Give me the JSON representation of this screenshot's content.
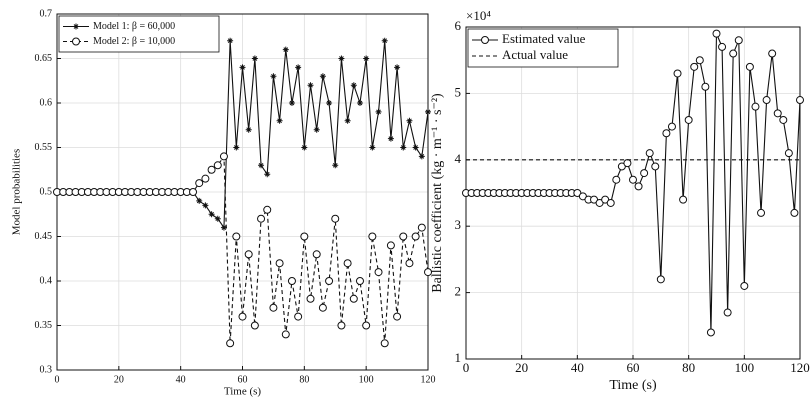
{
  "chart_data": [
    {
      "type": "line",
      "xlabel": "Time (s)",
      "ylabel": "Model probabilities",
      "xlim": [
        0,
        120
      ],
      "ylim": [
        0.3,
        0.7
      ],
      "xticks": [
        0,
        20,
        40,
        60,
        80,
        100,
        120
      ],
      "yticks": [
        0.3,
        0.35,
        0.4,
        0.45,
        0.5,
        0.55,
        0.6,
        0.65,
        0.7
      ],
      "grid": true,
      "legend": "upper left",
      "x": [
        0,
        2,
        4,
        6,
        8,
        10,
        12,
        14,
        16,
        18,
        20,
        22,
        24,
        26,
        28,
        30,
        32,
        34,
        36,
        38,
        40,
        42,
        44,
        46,
        48,
        50,
        52,
        54,
        56,
        58,
        60,
        62,
        64,
        66,
        68,
        70,
        72,
        74,
        76,
        78,
        80,
        82,
        84,
        86,
        88,
        90,
        92,
        94,
        96,
        98,
        100,
        102,
        104,
        106,
        108,
        110,
        112,
        114,
        116,
        118,
        120
      ],
      "series": [
        {
          "name": "Model 1: β = 60,000",
          "color": "#111111",
          "linestyle": "solid",
          "marker": "star",
          "values": [
            0.5,
            0.5,
            0.5,
            0.5,
            0.5,
            0.5,
            0.5,
            0.5,
            0.5,
            0.5,
            0.5,
            0.5,
            0.5,
            0.5,
            0.5,
            0.5,
            0.5,
            0.5,
            0.5,
            0.5,
            0.5,
            0.5,
            0.5,
            0.49,
            0.485,
            0.475,
            0.47,
            0.46,
            0.67,
            0.55,
            0.64,
            0.57,
            0.65,
            0.53,
            0.52,
            0.63,
            0.58,
            0.66,
            0.6,
            0.64,
            0.55,
            0.62,
            0.57,
            0.63,
            0.6,
            0.53,
            0.65,
            0.58,
            0.62,
            0.6,
            0.65,
            0.55,
            0.59,
            0.67,
            0.56,
            0.64,
            0.55,
            0.58,
            0.55,
            0.54,
            0.59
          ]
        },
        {
          "name": "Model 2: β = 10,000",
          "color": "#111111",
          "linestyle": "dashed",
          "marker": "circle",
          "values": [
            0.5,
            0.5,
            0.5,
            0.5,
            0.5,
            0.5,
            0.5,
            0.5,
            0.5,
            0.5,
            0.5,
            0.5,
            0.5,
            0.5,
            0.5,
            0.5,
            0.5,
            0.5,
            0.5,
            0.5,
            0.5,
            0.5,
            0.5,
            0.51,
            0.515,
            0.525,
            0.53,
            0.54,
            0.33,
            0.45,
            0.36,
            0.43,
            0.35,
            0.47,
            0.48,
            0.37,
            0.42,
            0.34,
            0.4,
            0.36,
            0.45,
            0.38,
            0.43,
            0.37,
            0.4,
            0.47,
            0.35,
            0.42,
            0.38,
            0.4,
            0.35,
            0.45,
            0.41,
            0.33,
            0.44,
            0.36,
            0.45,
            0.42,
            0.45,
            0.46,
            0.41
          ]
        }
      ]
    },
    {
      "type": "line",
      "xlabel": "Time (s)",
      "ylabel": "Ballistic coefficient (kg · m⁻¹ · s⁻²)",
      "y_multiplier": "×10⁴",
      "xlim": [
        0,
        120
      ],
      "ylim": [
        1,
        6
      ],
      "xticks": [
        0,
        20,
        40,
        60,
        80,
        100,
        120
      ],
      "yticks": [
        1,
        2,
        3,
        4,
        5,
        6
      ],
      "grid": true,
      "legend": "upper left",
      "x": [
        0,
        2,
        4,
        6,
        8,
        10,
        12,
        14,
        16,
        18,
        20,
        22,
        24,
        26,
        28,
        30,
        32,
        34,
        36,
        38,
        40,
        42,
        44,
        46,
        48,
        50,
        52,
        54,
        56,
        58,
        60,
        62,
        64,
        66,
        68,
        70,
        72,
        74,
        76,
        78,
        80,
        82,
        84,
        86,
        88,
        90,
        92,
        94,
        96,
        98,
        100,
        102,
        104,
        106,
        108,
        110,
        112,
        114,
        116,
        118,
        120
      ],
      "series": [
        {
          "name": "Estimated value",
          "color": "#111111",
          "linestyle": "solid",
          "marker": "circle",
          "values": [
            3.5,
            3.5,
            3.5,
            3.5,
            3.5,
            3.5,
            3.5,
            3.5,
            3.5,
            3.5,
            3.5,
            3.5,
            3.5,
            3.5,
            3.5,
            3.5,
            3.5,
            3.5,
            3.5,
            3.5,
            3.5,
            3.45,
            3.4,
            3.4,
            3.35,
            3.4,
            3.35,
            3.7,
            3.9,
            3.95,
            3.7,
            3.6,
            3.8,
            4.1,
            3.9,
            2.2,
            4.4,
            4.5,
            5.3,
            3.4,
            4.6,
            5.4,
            5.5,
            5.1,
            1.4,
            5.9,
            5.7,
            1.7,
            5.6,
            5.8,
            2.1,
            5.4,
            4.8,
            3.2,
            4.9,
            5.6,
            4.7,
            4.6,
            4.1,
            3.2,
            4.9
          ]
        },
        {
          "name": "Actual value",
          "color": "#111111",
          "linestyle": "dashed",
          "marker": "none",
          "x": [
            0,
            120
          ],
          "values": [
            4,
            4
          ]
        }
      ]
    }
  ]
}
